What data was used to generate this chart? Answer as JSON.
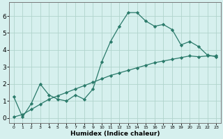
{
  "xlabel": "Humidex (Indice chaleur)",
  "background_color": "#d6f0ee",
  "grid_color": "#b0d4cc",
  "line_color": "#2a7a6a",
  "x_data": [
    0,
    1,
    2,
    3,
    4,
    5,
    6,
    7,
    8,
    9,
    10,
    11,
    12,
    13,
    14,
    15,
    16,
    17,
    18,
    19,
    20,
    21,
    22,
    23
  ],
  "y1_data": [
    1.25,
    0.05,
    0.85,
    2.0,
    1.35,
    1.1,
    1.0,
    1.35,
    1.1,
    1.7,
    3.3,
    4.5,
    5.4,
    6.2,
    6.2,
    5.7,
    5.4,
    5.5,
    5.2,
    4.3,
    4.5,
    4.2,
    3.7,
    3.6
  ],
  "y2_data": [
    0.05,
    0.2,
    0.5,
    0.8,
    1.1,
    1.3,
    1.5,
    1.7,
    1.9,
    2.1,
    2.3,
    2.5,
    2.65,
    2.8,
    2.95,
    3.1,
    3.25,
    3.35,
    3.45,
    3.55,
    3.65,
    3.6,
    3.65,
    3.65
  ],
  "ylim": [
    -0.3,
    6.8
  ],
  "xlim": [
    -0.5,
    23.5
  ],
  "yticks": [
    0,
    1,
    2,
    3,
    4,
    5,
    6
  ],
  "xticks": [
    0,
    1,
    2,
    3,
    4,
    5,
    6,
    7,
    8,
    9,
    10,
    11,
    12,
    13,
    14,
    15,
    16,
    17,
    18,
    19,
    20,
    21,
    22,
    23
  ]
}
